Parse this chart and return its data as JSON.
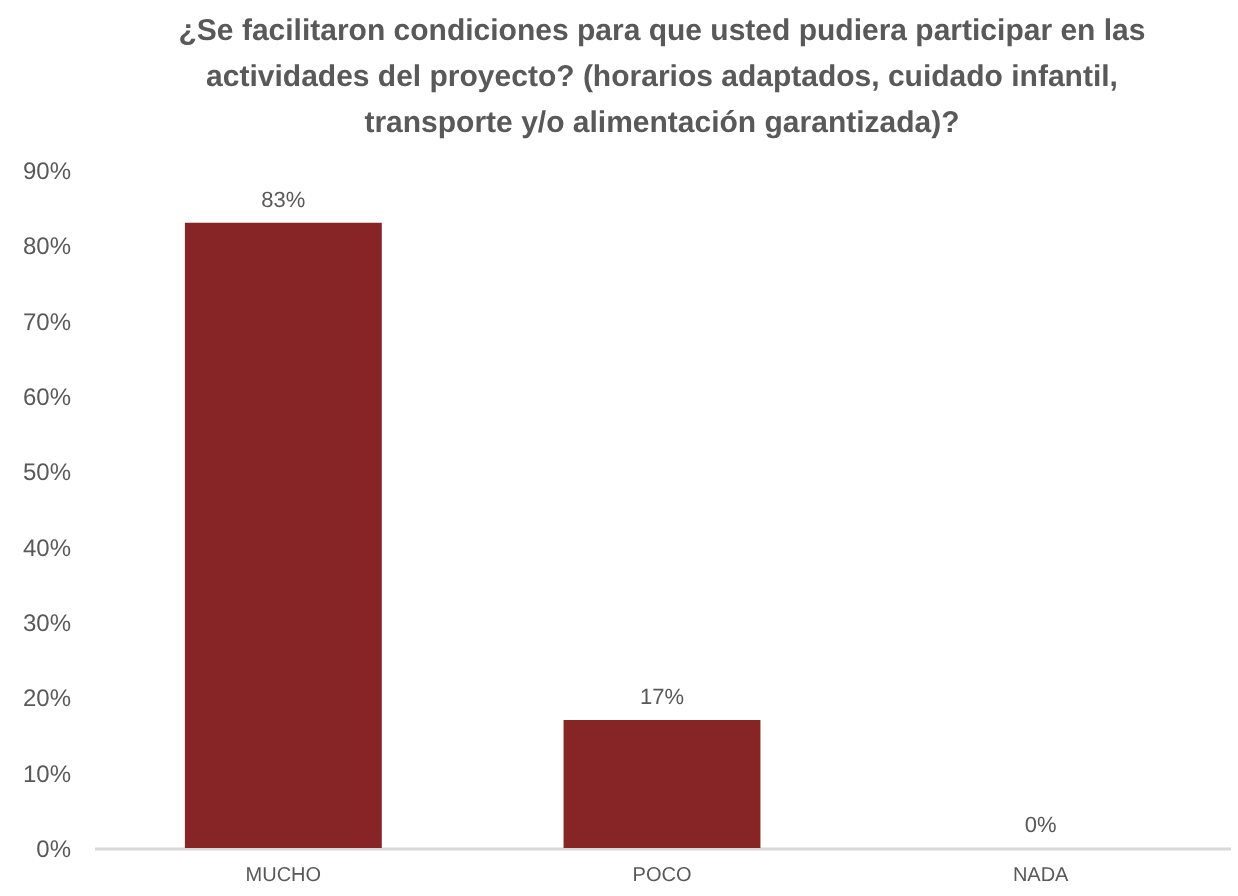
{
  "chart_data": {
    "type": "bar",
    "title": "¿Se facilitaron condiciones para que usted pudiera participar en las actividades del proyecto? (horarios adaptados, cuidado infantil, transporte y/o alimentación garantizada)?",
    "categories": [
      "MUCHO",
      "POCO",
      "NADA"
    ],
    "values": [
      83,
      17,
      0
    ],
    "color": "#862426",
    "value_labels": [
      "83%",
      "17%",
      "0%"
    ],
    "ylim": [
      0,
      90
    ],
    "yticks": [
      {
        "value": 0,
        "label": "0%"
      },
      {
        "value": 10,
        "label": "10%"
      },
      {
        "value": 20,
        "label": "20%"
      },
      {
        "value": 30,
        "label": "30%"
      },
      {
        "value": 40,
        "label": "40%"
      },
      {
        "value": 50,
        "label": "50%"
      },
      {
        "value": 60,
        "label": "60%"
      },
      {
        "value": 70,
        "label": "70%"
      },
      {
        "value": 80,
        "label": "80%"
      },
      {
        "value": 90,
        "label": "90%"
      }
    ]
  }
}
